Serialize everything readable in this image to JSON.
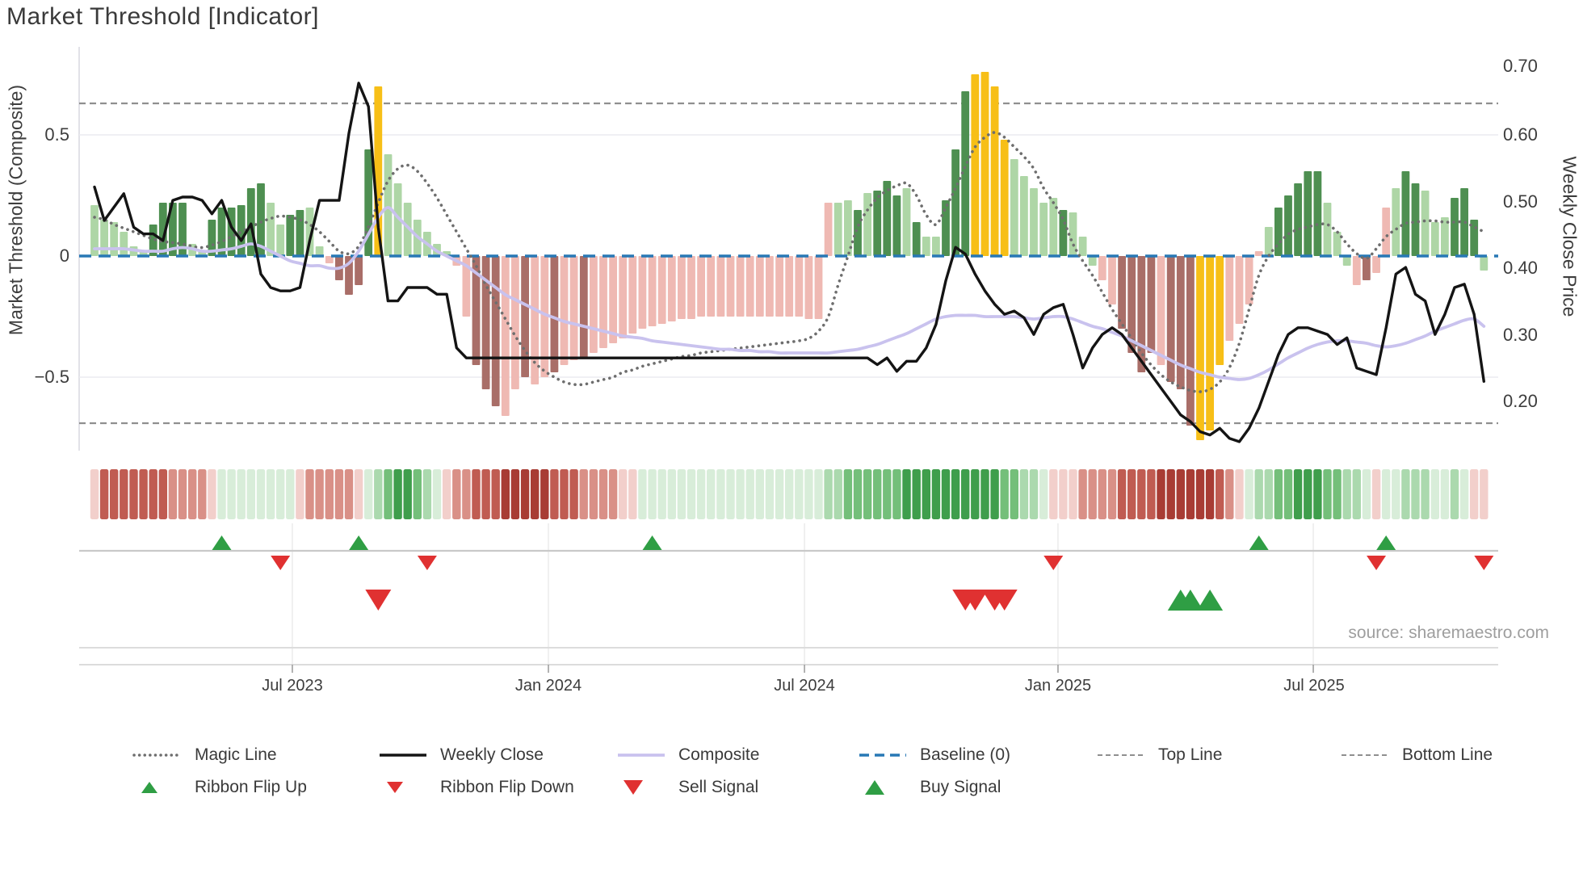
{
  "title": "Market Threshold [Indicator]",
  "source_credit": "source: sharemaestro.com",
  "colors": {
    "bar_light_green": "#aed6a6",
    "bar_dark_green": "#4e8f51",
    "bar_gold": "#f7bf17",
    "bar_light_pink": "#efb9b3",
    "bar_dark_red": "#a96e68",
    "weekly_close": "#141414",
    "composite_line": "#c9c2ee",
    "magic_line": "#6e6e6e",
    "baseline": "#2878b5",
    "threshold_line": "#8f8f8f",
    "grid": "#ebebf0",
    "spine": "#d8d8e0",
    "marker_line": "#c9c9c9",
    "axis_line": "#dcdcdc",
    "flip_up": "#2f9e44",
    "flip_down": "#e03131",
    "sell": "#e03131",
    "buy": "#2f9e44",
    "ribbon_palette": {
      "-4": "#a83c34",
      "-3": "#c05c52",
      "-2": "#d99087",
      "-1": "#f2cfcb",
      "1": "#d8edd9",
      "2": "#abd9ae",
      "3": "#74bf7a",
      "4": "#3f9e4c"
    }
  },
  "chart_data": {
    "type": "bar",
    "title": "Market Threshold [Indicator]",
    "weeks": 143,
    "left_axis": {
      "label": "Market Threshold (Composite)",
      "ticks": [
        {
          "label": "0.5",
          "value": 0.5
        },
        {
          "label": "0",
          "value": 0
        },
        {
          "label": "−0.5",
          "value": -0.5
        }
      ],
      "ylim": [
        -0.9,
        0.85
      ]
    },
    "right_axis": {
      "label": "Weekly Close Price",
      "ticks": [
        {
          "label": "0.70",
          "value": 0.7
        },
        {
          "label": "0.60",
          "value": 0.6
        },
        {
          "label": "0.50",
          "value": 0.5
        },
        {
          "label": "0.40",
          "value": 0.4
        },
        {
          "label": "0.30",
          "value": 0.3
        },
        {
          "label": "0.20",
          "value": 0.2
        }
      ]
    },
    "x_axis": {
      "ticks": [
        {
          "label": "Jul 2023",
          "week": 20.22
        },
        {
          "label": "Jan 2024",
          "week": 46.39
        },
        {
          "label": "Jul 2024",
          "week": 72.56
        },
        {
          "label": "Jan 2025",
          "week": 98.47
        },
        {
          "label": "Jul 2025",
          "week": 124.56
        }
      ]
    },
    "baseline": 0,
    "top_line": 0.63,
    "bottom_line": -0.69,
    "grid_values": [
      0.5,
      -0.5
    ],
    "bars": {
      "values": [
        0.21,
        0.15,
        0.14,
        0.1,
        0.04,
        0.02,
        0.13,
        0.22,
        0.22,
        0.22,
        0.05,
        0.02,
        0.15,
        0.2,
        0.2,
        0.21,
        0.28,
        0.3,
        0.22,
        0.13,
        0.17,
        0.19,
        0.2,
        0.04,
        -0.03,
        -0.1,
        -0.16,
        -0.12,
        0.44,
        0.7,
        0.42,
        0.3,
        0.22,
        0.15,
        0.1,
        0.05,
        0.02,
        -0.04,
        -0.25,
        -0.45,
        -0.55,
        -0.62,
        -0.66,
        -0.55,
        -0.5,
        -0.53,
        -0.5,
        -0.48,
        -0.45,
        -0.43,
        -0.42,
        -0.4,
        -0.38,
        -0.36,
        -0.34,
        -0.32,
        -0.3,
        -0.29,
        -0.28,
        -0.27,
        -0.26,
        -0.26,
        -0.25,
        -0.25,
        -0.25,
        -0.25,
        -0.25,
        -0.25,
        -0.25,
        -0.25,
        -0.25,
        -0.25,
        -0.25,
        -0.26,
        -0.26,
        0.22,
        0.22,
        0.23,
        0.19,
        0.26,
        0.27,
        0.31,
        0.25,
        0.28,
        0.14,
        0.08,
        0.08,
        0.23,
        0.44,
        0.68,
        0.75,
        0.76,
        0.7,
        0.48,
        0.4,
        0.33,
        0.28,
        0.22,
        0.24,
        0.19,
        0.18,
        0.08,
        -0.04,
        -0.1,
        -0.2,
        -0.3,
        -0.4,
        -0.48,
        -0.4,
        -0.45,
        -0.52,
        -0.55,
        -0.7,
        -0.76,
        -0.72,
        -0.45,
        -0.35,
        -0.28,
        -0.2,
        0.02,
        0.12,
        0.2,
        0.25,
        0.3,
        0.35,
        0.35,
        0.22,
        0.1,
        -0.04,
        -0.12,
        -0.1,
        -0.07,
        0.2,
        0.28,
        0.35,
        0.3,
        0.27,
        0.14,
        0.16,
        0.24,
        0.28,
        0.15,
        -0.06
      ],
      "color_key": "ggggggGGGGggGGGGGGggGGggprrrGygggggggpprrrpprpprpprpppppppppppppppppppppppppggGgGGGgGggGGGyyyygggggGgggpprrrrprrryyyppppgGGGGGgggprppgGGgggGGGgp",
      "color_map": {
        "g": "bar_light_green",
        "G": "bar_dark_green",
        "y": "bar_gold",
        "p": "bar_light_pink",
        "r": "bar_dark_red"
      }
    },
    "weekly_close": [
      0.52,
      0.47,
      0.49,
      0.51,
      0.46,
      0.45,
      0.45,
      0.44,
      0.5,
      0.505,
      0.505,
      0.5,
      0.48,
      0.5,
      0.46,
      0.44,
      0.465,
      0.39,
      0.37,
      0.365,
      0.365,
      0.37,
      0.44,
      0.5,
      0.5,
      0.5,
      0.6,
      0.675,
      0.64,
      0.46,
      0.35,
      0.35,
      0.37,
      0.37,
      0.37,
      0.36,
      0.36,
      0.28,
      0.265,
      0.265,
      0.265,
      0.265,
      0.265,
      0.265,
      0.265,
      0.265,
      0.265,
      0.265,
      0.265,
      0.265,
      0.265,
      0.265,
      0.265,
      0.265,
      0.265,
      0.265,
      0.265,
      0.265,
      0.265,
      0.265,
      0.265,
      0.265,
      0.265,
      0.265,
      0.265,
      0.265,
      0.265,
      0.265,
      0.265,
      0.265,
      0.265,
      0.265,
      0.265,
      0.265,
      0.265,
      0.265,
      0.265,
      0.265,
      0.265,
      0.265,
      0.255,
      0.265,
      0.245,
      0.26,
      0.26,
      0.28,
      0.315,
      0.38,
      0.43,
      0.42,
      0.39,
      0.365,
      0.345,
      0.33,
      0.335,
      0.325,
      0.3,
      0.33,
      0.34,
      0.345,
      0.3,
      0.25,
      0.28,
      0.3,
      0.31,
      0.3,
      0.28,
      0.26,
      0.24,
      0.22,
      0.2,
      0.18,
      0.17,
      0.155,
      0.15,
      0.16,
      0.145,
      0.14,
      0.16,
      0.19,
      0.23,
      0.27,
      0.3,
      0.31,
      0.31,
      0.305,
      0.3,
      0.285,
      0.295,
      0.25,
      0.245,
      0.24,
      0.31,
      0.39,
      0.4,
      0.36,
      0.35,
      0.3,
      0.33,
      0.37,
      0.375,
      0.33,
      0.23
    ],
    "composite": [
      0.03,
      0.03,
      0.03,
      0.03,
      0.025,
      0.02,
      0.02,
      0.02,
      0.03,
      0.035,
      0.03,
      0.02,
      0.02,
      0.025,
      0.03,
      0.04,
      0.05,
      0.04,
      0.02,
      0.0,
      -0.02,
      -0.03,
      -0.04,
      -0.04,
      -0.05,
      -0.05,
      -0.03,
      0.02,
      0.09,
      0.16,
      0.2,
      0.16,
      0.12,
      0.08,
      0.05,
      0.02,
      0.0,
      -0.02,
      -0.04,
      -0.07,
      -0.1,
      -0.13,
      -0.16,
      -0.18,
      -0.2,
      -0.22,
      -0.24,
      -0.255,
      -0.27,
      -0.28,
      -0.29,
      -0.3,
      -0.31,
      -0.32,
      -0.33,
      -0.335,
      -0.34,
      -0.35,
      -0.355,
      -0.36,
      -0.365,
      -0.37,
      -0.375,
      -0.38,
      -0.385,
      -0.385,
      -0.39,
      -0.39,
      -0.395,
      -0.395,
      -0.4,
      -0.4,
      -0.4,
      -0.4,
      -0.4,
      -0.4,
      -0.395,
      -0.39,
      -0.385,
      -0.375,
      -0.365,
      -0.35,
      -0.335,
      -0.32,
      -0.3,
      -0.28,
      -0.26,
      -0.25,
      -0.245,
      -0.245,
      -0.245,
      -0.25,
      -0.25,
      -0.25,
      -0.25,
      -0.255,
      -0.26,
      -0.255,
      -0.25,
      -0.25,
      -0.26,
      -0.275,
      -0.29,
      -0.3,
      -0.315,
      -0.33,
      -0.35,
      -0.37,
      -0.39,
      -0.41,
      -0.43,
      -0.45,
      -0.465,
      -0.48,
      -0.49,
      -0.5,
      -0.505,
      -0.51,
      -0.505,
      -0.49,
      -0.47,
      -0.445,
      -0.42,
      -0.4,
      -0.38,
      -0.365,
      -0.355,
      -0.35,
      -0.35,
      -0.355,
      -0.36,
      -0.37,
      -0.375,
      -0.37,
      -0.36,
      -0.345,
      -0.33,
      -0.31,
      -0.295,
      -0.28,
      -0.265,
      -0.26,
      -0.29
    ],
    "magic": [
      0.16,
      0.15,
      0.13,
      0.115,
      0.1,
      0.085,
      0.07,
      0.06,
      0.055,
      0.05,
      0.04,
      0.035,
      0.045,
      0.06,
      0.08,
      0.1,
      0.12,
      0.14,
      0.155,
      0.165,
      0.16,
      0.15,
      0.13,
      0.1,
      0.06,
      0.02,
      0.01,
      0.04,
      0.12,
      0.22,
      0.31,
      0.36,
      0.375,
      0.35,
      0.3,
      0.24,
      0.17,
      0.1,
      0.03,
      -0.04,
      -0.12,
      -0.19,
      -0.26,
      -0.33,
      -0.39,
      -0.44,
      -0.475,
      -0.5,
      -0.52,
      -0.53,
      -0.53,
      -0.52,
      -0.51,
      -0.5,
      -0.48,
      -0.47,
      -0.455,
      -0.445,
      -0.435,
      -0.425,
      -0.415,
      -0.41,
      -0.4,
      -0.395,
      -0.39,
      -0.385,
      -0.38,
      -0.375,
      -0.37,
      -0.365,
      -0.36,
      -0.355,
      -0.35,
      -0.34,
      -0.31,
      -0.25,
      -0.12,
      0.0,
      0.12,
      0.19,
      0.24,
      0.27,
      0.29,
      0.3,
      0.25,
      0.17,
      0.13,
      0.2,
      0.28,
      0.37,
      0.45,
      0.49,
      0.51,
      0.49,
      0.45,
      0.41,
      0.36,
      0.28,
      0.22,
      0.15,
      0.05,
      -0.02,
      -0.08,
      -0.15,
      -0.22,
      -0.28,
      -0.34,
      -0.4,
      -0.45,
      -0.49,
      -0.52,
      -0.54,
      -0.555,
      -0.56,
      -0.55,
      -0.52,
      -0.46,
      -0.36,
      -0.22,
      -0.08,
      0.0,
      0.05,
      0.09,
      0.11,
      0.12,
      0.13,
      0.13,
      0.1,
      0.05,
      0.01,
      -0.01,
      0.03,
      0.08,
      0.11,
      0.135,
      0.14,
      0.145,
      0.145,
      0.14,
      0.14,
      0.14,
      0.12,
      0.1
    ],
    "ribbon": [
      -1,
      -3,
      -3,
      -3,
      -3,
      -3,
      -3,
      -3,
      -2,
      -2,
      -2,
      -2,
      -1,
      1,
      1,
      1,
      1,
      1,
      1,
      1,
      1,
      -1,
      -2,
      -2,
      -2,
      -2,
      -2,
      -1,
      1,
      2,
      3,
      4,
      4,
      3,
      2,
      1,
      -1,
      -2,
      -2,
      -3,
      -3,
      -3,
      -4,
      -4,
      -4,
      -4,
      -4,
      -3,
      -3,
      -3,
      -2,
      -2,
      -2,
      -2,
      -1,
      -1,
      1,
      1,
      1,
      1,
      1,
      1,
      1,
      1,
      1,
      1,
      1,
      1,
      1,
      1,
      1,
      1,
      1,
      1,
      1,
      2,
      2,
      3,
      3,
      3,
      3,
      3,
      3,
      4,
      4,
      4,
      4,
      4,
      4,
      4,
      4,
      4,
      4,
      3,
      3,
      2,
      2,
      1,
      -1,
      -1,
      -1,
      -2,
      -2,
      -2,
      -2,
      -3,
      -3,
      -3,
      -3,
      -4,
      -4,
      -4,
      -4,
      -4,
      -4,
      -3,
      -2,
      -1,
      1,
      2,
      2,
      3,
      3,
      4,
      4,
      4,
      3,
      3,
      2,
      2,
      1,
      -1,
      1,
      1,
      2,
      2,
      2,
      1,
      1,
      2,
      1,
      -1,
      -1
    ],
    "signals": {
      "ribbon_flip_up_weeks": [
        13,
        27,
        57,
        119,
        132
      ],
      "ribbon_flip_down_weeks": [
        19,
        34,
        98,
        131,
        142
      ],
      "sell_weeks": [
        29,
        89,
        90,
        92,
        93
      ],
      "buy_weeks": [
        111,
        112,
        114
      ]
    }
  },
  "legend": {
    "row1": [
      {
        "label": "Magic Line",
        "type": "dotted-gray"
      },
      {
        "label": "Weekly Close",
        "type": "solid-black"
      },
      {
        "label": "Composite",
        "type": "solid-purple"
      },
      {
        "label": "Baseline (0)",
        "type": "dashed-blue"
      },
      {
        "label": "Top Line",
        "type": "dashed-gray"
      },
      {
        "label": "Bottom Line",
        "type": "dashed-gray"
      }
    ],
    "row2": [
      {
        "label": "Ribbon Flip Up",
        "type": "tri-up-small"
      },
      {
        "label": "Ribbon Flip Down",
        "type": "tri-down-small"
      },
      {
        "label": "Sell Signal",
        "type": "tri-down-large"
      },
      {
        "label": "Buy Signal",
        "type": "tri-up-large"
      }
    ]
  }
}
